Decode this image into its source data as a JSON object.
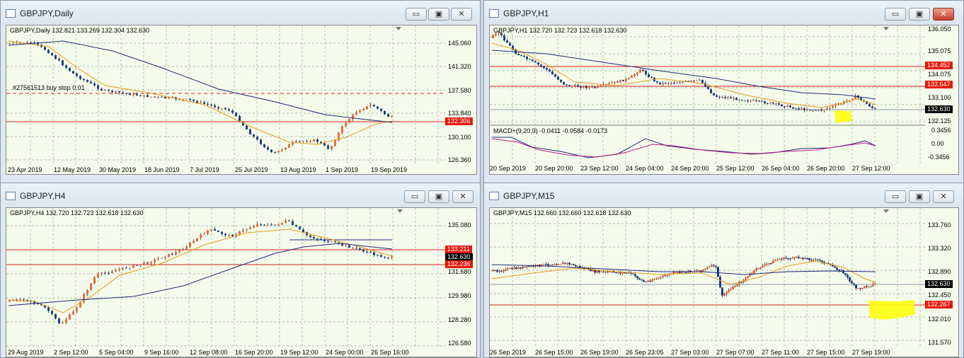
{
  "windows": [
    {
      "title": "GBPJPY,Daily",
      "header": "GBPJPY,Daily  132.821 133.269 132.304 132.630",
      "y_labels": [
        "145.060",
        "141.320",
        "137.580",
        "133.840",
        "130.100",
        "126.360"
      ],
      "x_labels": [
        "23 Apr 2019",
        "12 May 2019",
        "30 May 2019",
        "18 Jun 2019",
        "7 Jul 2019",
        "25 Jul 2019",
        "13 Aug 2019",
        "1 Sep 2019",
        "19 Sep 2019"
      ],
      "price_tags": [
        {
          "value": "132.306",
          "color": "red"
        }
      ],
      "order_note": "#27561513 buy stop 0.01"
    },
    {
      "title": "GBPJPY,H1",
      "header": "GBPJPY,H1  132.720 132.723 132.618 132.630",
      "y_labels": [
        "136.050",
        "135.075",
        "134.452",
        "134.075",
        "133.647",
        "133.100",
        "132.630",
        "132.125"
      ],
      "indicator_header": "MACD+(9,20,9) -0.0411 -0.0584 -0.0173",
      "indicator_labels": [
        "0.3456",
        "0.00",
        "-0.3456"
      ],
      "x_labels": [
        "20 Sep 2019",
        "20 Sep 20:00",
        "23 Sep 12:00",
        "24 Sep 04:00",
        "24 Sep 20:00",
        "25 Sep 12:00",
        "26 Sep 04:00",
        "26 Sep 20:00",
        "27 Sep 12:00"
      ],
      "price_tags": [
        {
          "value": "134.452",
          "color": "red"
        },
        {
          "value": "133.647",
          "color": "red"
        },
        {
          "value": "132.630",
          "color": "black"
        }
      ]
    },
    {
      "title": "GBPJPY,H4",
      "header": "GBPJPY,H4  132.720 132.723 132.618 132.630",
      "y_labels": [
        "135.080",
        "131.680",
        "129.980",
        "128.280",
        "126.580"
      ],
      "x_labels": [
        "29 Aug 2019",
        "2 Sep 12:00",
        "5 Sep 04:00",
        "9 Sep 16:00",
        "12 Sep 08:00",
        "16 Sep 20:00",
        "19 Sep 12:00",
        "24 Sep 00:00",
        "26 Sep 16:00"
      ],
      "price_tags": [
        {
          "value": "133.211",
          "color": "red"
        },
        {
          "value": "132.630",
          "color": "black"
        },
        {
          "value": "132.236",
          "color": "red"
        }
      ]
    },
    {
      "title": "GBPJPY,M15",
      "header": "GBPJPY,M15  132.660 132.660 132.618 132.630",
      "y_labels": [
        "133.760",
        "133.320",
        "132.890",
        "132.450",
        "132.010",
        "131.570"
      ],
      "x_labels": [
        "26 Sep 2019",
        "26 Sep 15:00",
        "26 Sep 19:00",
        "26 Sep 23:05",
        "27 Sep 03:00",
        "27 Sep 07:00",
        "27 Sep 11:00",
        "27 Sep 15:00",
        "27 Sep 19:00"
      ],
      "price_tags": [
        {
          "value": "132.630",
          "color": "black"
        },
        {
          "value": "132.267",
          "color": "red"
        }
      ]
    }
  ],
  "controls": {
    "minimize": "▭",
    "maximize": "▣",
    "close": "✕"
  }
}
